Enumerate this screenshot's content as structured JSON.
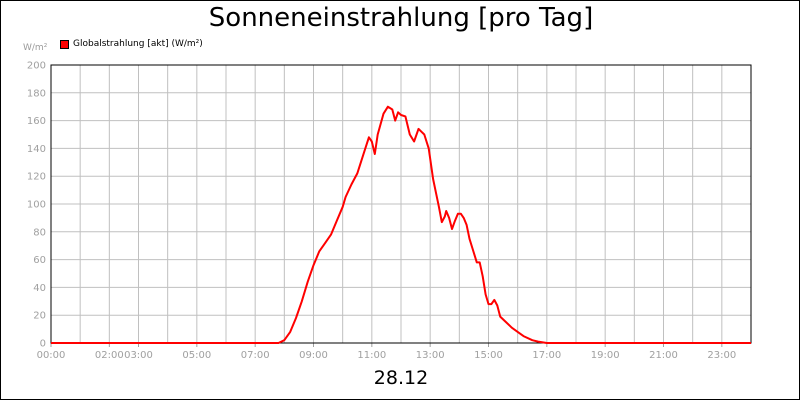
{
  "title": "Sonneneinstrahlung [pro Tag]",
  "date_label": "28.12",
  "unit_label": "W/m²",
  "legend": {
    "label": "Globalstrahlung [akt] (W/m²)",
    "color": "#ff0000"
  },
  "colors": {
    "line": "#ff0000",
    "grid": "#c0c0c0",
    "axis": "#000000",
    "ticks": "#a0a0a0"
  },
  "chart_data": {
    "type": "line",
    "title": "Sonneneinstrahlung [pro Tag]",
    "xlabel": "28.12",
    "ylabel": "W/m²",
    "x_unit": "hours",
    "xlim": [
      0,
      24
    ],
    "ylim": [
      0,
      200
    ],
    "grid": true,
    "legend_position": "top-left",
    "y_ticks": [
      0,
      20,
      40,
      60,
      80,
      100,
      120,
      140,
      160,
      180,
      200
    ],
    "x_ticks": [
      {
        "value": 0,
        "label": "00:00"
      },
      {
        "value": 2,
        "label": "02:00"
      },
      {
        "value": 3,
        "label": "03:00"
      },
      {
        "value": 5,
        "label": "05:00"
      },
      {
        "value": 7,
        "label": "07:00"
      },
      {
        "value": 9,
        "label": "09:00"
      },
      {
        "value": 11,
        "label": "11:00"
      },
      {
        "value": 13,
        "label": "13:00"
      },
      {
        "value": 15,
        "label": "15:00"
      },
      {
        "value": 17,
        "label": "17:00"
      },
      {
        "value": 19,
        "label": "19:00"
      },
      {
        "value": 21,
        "label": "21:00"
      },
      {
        "value": 23,
        "label": "23:00"
      }
    ],
    "series": [
      {
        "name": "Globalstrahlung [akt] (W/m²)",
        "color": "#ff0000",
        "x": [
          0,
          7.8,
          8.0,
          8.2,
          8.4,
          8.6,
          8.8,
          9.0,
          9.2,
          9.4,
          9.6,
          9.8,
          10.0,
          10.1,
          10.3,
          10.5,
          10.7,
          10.9,
          11.0,
          11.1,
          11.2,
          11.4,
          11.55,
          11.7,
          11.8,
          11.9,
          12.0,
          12.15,
          12.3,
          12.45,
          12.6,
          12.7,
          12.8,
          12.95,
          13.1,
          13.2,
          13.3,
          13.4,
          13.5,
          13.55,
          13.65,
          13.75,
          13.85,
          13.95,
          14.05,
          14.15,
          14.25,
          14.35,
          14.45,
          14.6,
          14.7,
          14.8,
          14.9,
          15.0,
          15.1,
          15.2,
          15.3,
          15.4,
          15.6,
          15.8,
          16.0,
          16.2,
          16.5,
          16.7,
          17.0,
          24
        ],
        "values": [
          0,
          0,
          2,
          8,
          18,
          30,
          44,
          56,
          66,
          72,
          78,
          88,
          98,
          105,
          114,
          122,
          135,
          148,
          145,
          136,
          150,
          165,
          170,
          168,
          160,
          166,
          164,
          163,
          150,
          145,
          154,
          152,
          150,
          140,
          118,
          108,
          98,
          87,
          91,
          95,
          90,
          82,
          88,
          93,
          93,
          90,
          85,
          75,
          68,
          58,
          58,
          48,
          35,
          28,
          28,
          31,
          27,
          19,
          15,
          11,
          8,
          5,
          2,
          1,
          0,
          0
        ]
      }
    ]
  }
}
